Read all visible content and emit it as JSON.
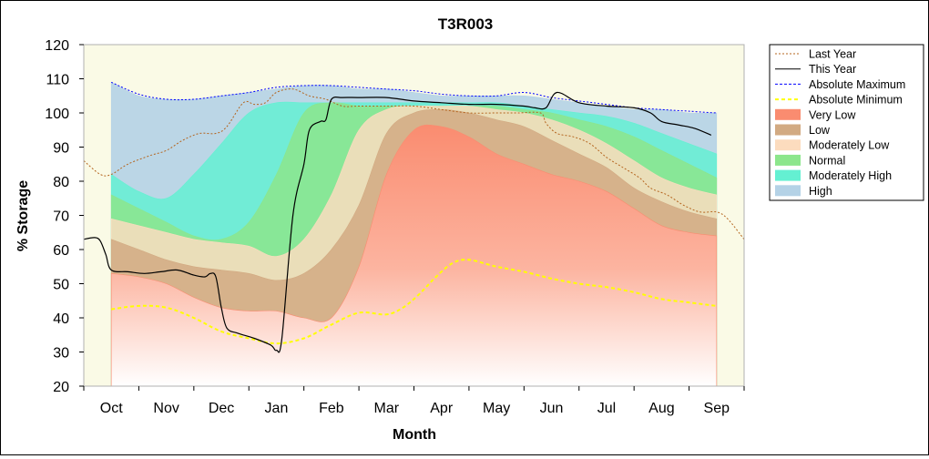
{
  "chart_data": {
    "type": "area",
    "title": "T3R003",
    "xlabel": "Month",
    "ylabel": "% Storage",
    "ylim": [
      20,
      120
    ],
    "yticks": [
      20,
      30,
      40,
      50,
      60,
      70,
      80,
      90,
      100,
      110,
      120
    ],
    "xlim": [
      -0.5,
      11.5
    ],
    "month_ticks": [
      "Oct",
      "Nov",
      "Dec",
      "Jan",
      "Feb",
      "Mar",
      "Apr",
      "May",
      "Jun",
      "Jul",
      "Aug",
      "Sep"
    ],
    "grid": false,
    "legend_position": "right",
    "colors": {
      "very_low": "#fa8c70",
      "low": "#d2aa82",
      "moderately_low": "#fcdcbe",
      "normal": "#8ce68c",
      "moderately_high": "#64f0d2",
      "high": "#b4d2e6",
      "last_year": "#b4641e",
      "this_year": "#000000",
      "absolute_maximum": "#0000ff",
      "absolute_minimum": "#ffff00",
      "off_season": "#fafae6"
    },
    "legend": [
      {
        "key": "last_year",
        "label": "Last Year",
        "kind": "line",
        "color": "#b4641e",
        "dash": "2,2"
      },
      {
        "key": "this_year",
        "label": "This Year",
        "kind": "line",
        "color": "#000000",
        "dash": ""
      },
      {
        "key": "absolute_maximum",
        "label": "Absolute Maximum",
        "kind": "line",
        "color": "#0000ff",
        "dash": "3,2"
      },
      {
        "key": "absolute_minimum",
        "label": "Absolute Minimum",
        "kind": "line",
        "color": "#ffff00",
        "dash": "4,3"
      },
      {
        "key": "very_low",
        "label": "Very Low",
        "kind": "band",
        "color": "#fa8c70"
      },
      {
        "key": "low",
        "label": "Low",
        "kind": "band",
        "color": "#d2aa82"
      },
      {
        "key": "moderately_low",
        "label": "Moderately Low",
        "kind": "band",
        "color": "#fcdcbe"
      },
      {
        "key": "normal",
        "label": "Normal",
        "kind": "band",
        "color": "#8ce68c"
      },
      {
        "key": "moderately_high",
        "label": "Moderately High",
        "kind": "band",
        "color": "#64f0d2"
      },
      {
        "key": "high",
        "label": "High",
        "kind": "band",
        "color": "#b4d2e6"
      }
    ],
    "band_x": [
      0,
      0.5,
      1,
      1.5,
      2,
      2.5,
      3,
      3.5,
      4,
      4.5,
      5,
      5.5,
      6,
      6.5,
      7,
      7.5,
      8,
      8.5,
      9,
      9.5,
      10,
      10.5,
      11
    ],
    "band_uppers": {
      "very_low": [
        53,
        52,
        50,
        46,
        43,
        42,
        42,
        40,
        40,
        55,
        82,
        95,
        96,
        93,
        88,
        85,
        82,
        80,
        77,
        72,
        67,
        65,
        64
      ],
      "low": [
        63,
        60,
        57,
        55,
        54,
        53,
        51,
        53,
        60,
        73,
        94,
        100,
        101,
        100,
        98,
        96,
        92,
        88,
        84,
        78,
        74,
        71,
        69
      ],
      "moderately_low": [
        69,
        67,
        65,
        63,
        62,
        61,
        58,
        63,
        76,
        95,
        101,
        102,
        102,
        102,
        101,
        100,
        98,
        95,
        91,
        86,
        81,
        78,
        76
      ],
      "normal": [
        76,
        72,
        68,
        64,
        63,
        68,
        82,
        100,
        103,
        102,
        102,
        102,
        102,
        102,
        102,
        101,
        100,
        98,
        96,
        93,
        89,
        85,
        81
      ],
      "moderately_high": [
        82,
        77,
        75,
        82,
        91,
        100,
        103,
        103,
        103,
        103,
        103,
        103,
        103,
        103,
        103,
        102,
        101,
        100,
        99,
        97,
        94,
        91,
        88
      ],
      "high": [
        109,
        105,
        104,
        104,
        105,
        106,
        107,
        108,
        108,
        107,
        107,
        106,
        105,
        105,
        105,
        105,
        104,
        103,
        102,
        101,
        101,
        100,
        100
      ]
    },
    "series": [
      {
        "key": "absolute_maximum",
        "name": "Absolute Maximum",
        "x": [
          0,
          0.5,
          1,
          1.5,
          2,
          2.5,
          3,
          3.5,
          4,
          4.5,
          5,
          5.5,
          6,
          6.5,
          7,
          7.5,
          8,
          8.5,
          9,
          9.5,
          10,
          10.5,
          11
        ],
        "y": [
          109,
          105.5,
          104,
          104,
          105,
          106,
          107.5,
          108,
          108,
          107.5,
          107,
          106.5,
          105.5,
          105,
          105,
          106,
          104.5,
          103.5,
          102.5,
          101.5,
          101,
          100.5,
          100
        ]
      },
      {
        "key": "absolute_minimum",
        "name": "Absolute Minimum",
        "x": [
          0,
          0.5,
          1,
          1.5,
          2,
          2.5,
          3,
          3.5,
          4,
          4.5,
          5,
          5.3,
          5.6,
          5.9,
          6.2,
          6.5,
          7,
          7.5,
          8,
          8.5,
          9,
          9.5,
          10,
          10.5,
          11
        ],
        "y": [
          42.5,
          43.5,
          43,
          40,
          36,
          34,
          32.5,
          34,
          38,
          41.5,
          41,
          43,
          47,
          52,
          56,
          57,
          55,
          53.5,
          51.5,
          50,
          49,
          47.5,
          45.5,
          44.5,
          43.5
        ]
      },
      {
        "key": "last_year",
        "name": "Last Year",
        "x": [
          -0.5,
          -0.2,
          0,
          0.3,
          0.7,
          1,
          1.3,
          1.6,
          1.9,
          2.1,
          2.4,
          2.6,
          2.8,
          3,
          3.3,
          3.6,
          3.9,
          4.2,
          4.5,
          5,
          5.5,
          6,
          6.5,
          7,
          7.4,
          7.8,
          7.9,
          8.1,
          8.4,
          8.7,
          9,
          9.3,
          9.6,
          9.8,
          10.1,
          10.4,
          10.7,
          11,
          11.2,
          11.5
        ],
        "y": [
          86,
          82,
          82,
          85,
          87.5,
          89,
          92,
          94,
          94,
          96,
          103,
          102.5,
          103,
          106,
          107,
          105,
          104,
          102,
          102,
          102,
          102,
          101,
          100,
          100,
          100,
          100,
          97,
          94,
          93,
          91,
          87,
          84,
          81,
          78,
          76,
          73,
          71,
          71,
          69,
          63
        ]
      },
      {
        "key": "this_year",
        "name": "This Year",
        "x": [
          -0.5,
          -0.3,
          -0.2,
          -0.1,
          0,
          0.3,
          0.6,
          0.9,
          1.2,
          1.5,
          1.7,
          1.8,
          1.9,
          2,
          2.1,
          2.3,
          2.6,
          2.9,
          3,
          3.1,
          3.3,
          3.5,
          3.6,
          3.8,
          3.9,
          4,
          4.2,
          4.5,
          5,
          5.5,
          6,
          6.5,
          7,
          7.5,
          7.7,
          7.9,
          8.1,
          8.5,
          9,
          9.5,
          9.8,
          10,
          10.3,
          10.6,
          10.9
        ],
        "y": [
          63,
          63.5,
          62.5,
          58.5,
          54,
          53.5,
          53,
          53.5,
          54,
          52.5,
          52,
          53,
          52,
          43,
          37,
          35.5,
          34,
          32,
          30.5,
          34,
          70,
          85,
          95,
          97.5,
          98,
          104,
          104.5,
          104.5,
          104.5,
          103.5,
          103,
          102.5,
          102.5,
          102,
          101.5,
          101.5,
          106,
          103,
          102,
          101.5,
          100,
          97.5,
          96.5,
          95.5,
          93.5
        ]
      }
    ]
  }
}
